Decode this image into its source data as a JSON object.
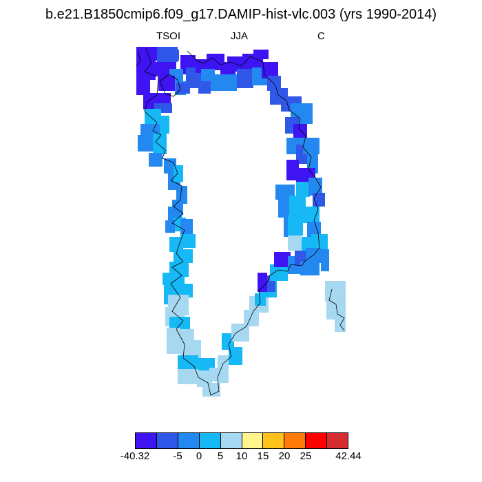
{
  "title": "b.e21.B1850cmip6.f09_g17.DAMIP-hist-vlc.003 (yrs 1990-2014)",
  "labels": {
    "variable": "TSOI",
    "season": "JJA",
    "units": "C"
  },
  "colors": {
    "c1": "#3f14f2",
    "c2": "#2f58e8",
    "c3": "#2389f0",
    "c4": "#16b8f5",
    "c5": "#a6d8f2",
    "c6": "#fff58c",
    "c7": "#ffc21a",
    "c8": "#ff7a08",
    "c9": "#ff0000",
    "c10": "#d42c30"
  },
  "colorbar": {
    "colors": [
      "#3f14f2",
      "#2f58e8",
      "#2389f0",
      "#16b8f5",
      "#a6d8f2",
      "#fff58c",
      "#ffc21a",
      "#ff7a08",
      "#ff0000",
      "#d42c30"
    ],
    "tick_labels": [
      "-40.32",
      "-5",
      "0",
      "5",
      "10",
      "15",
      "20",
      "25",
      "42.44"
    ]
  }
}
